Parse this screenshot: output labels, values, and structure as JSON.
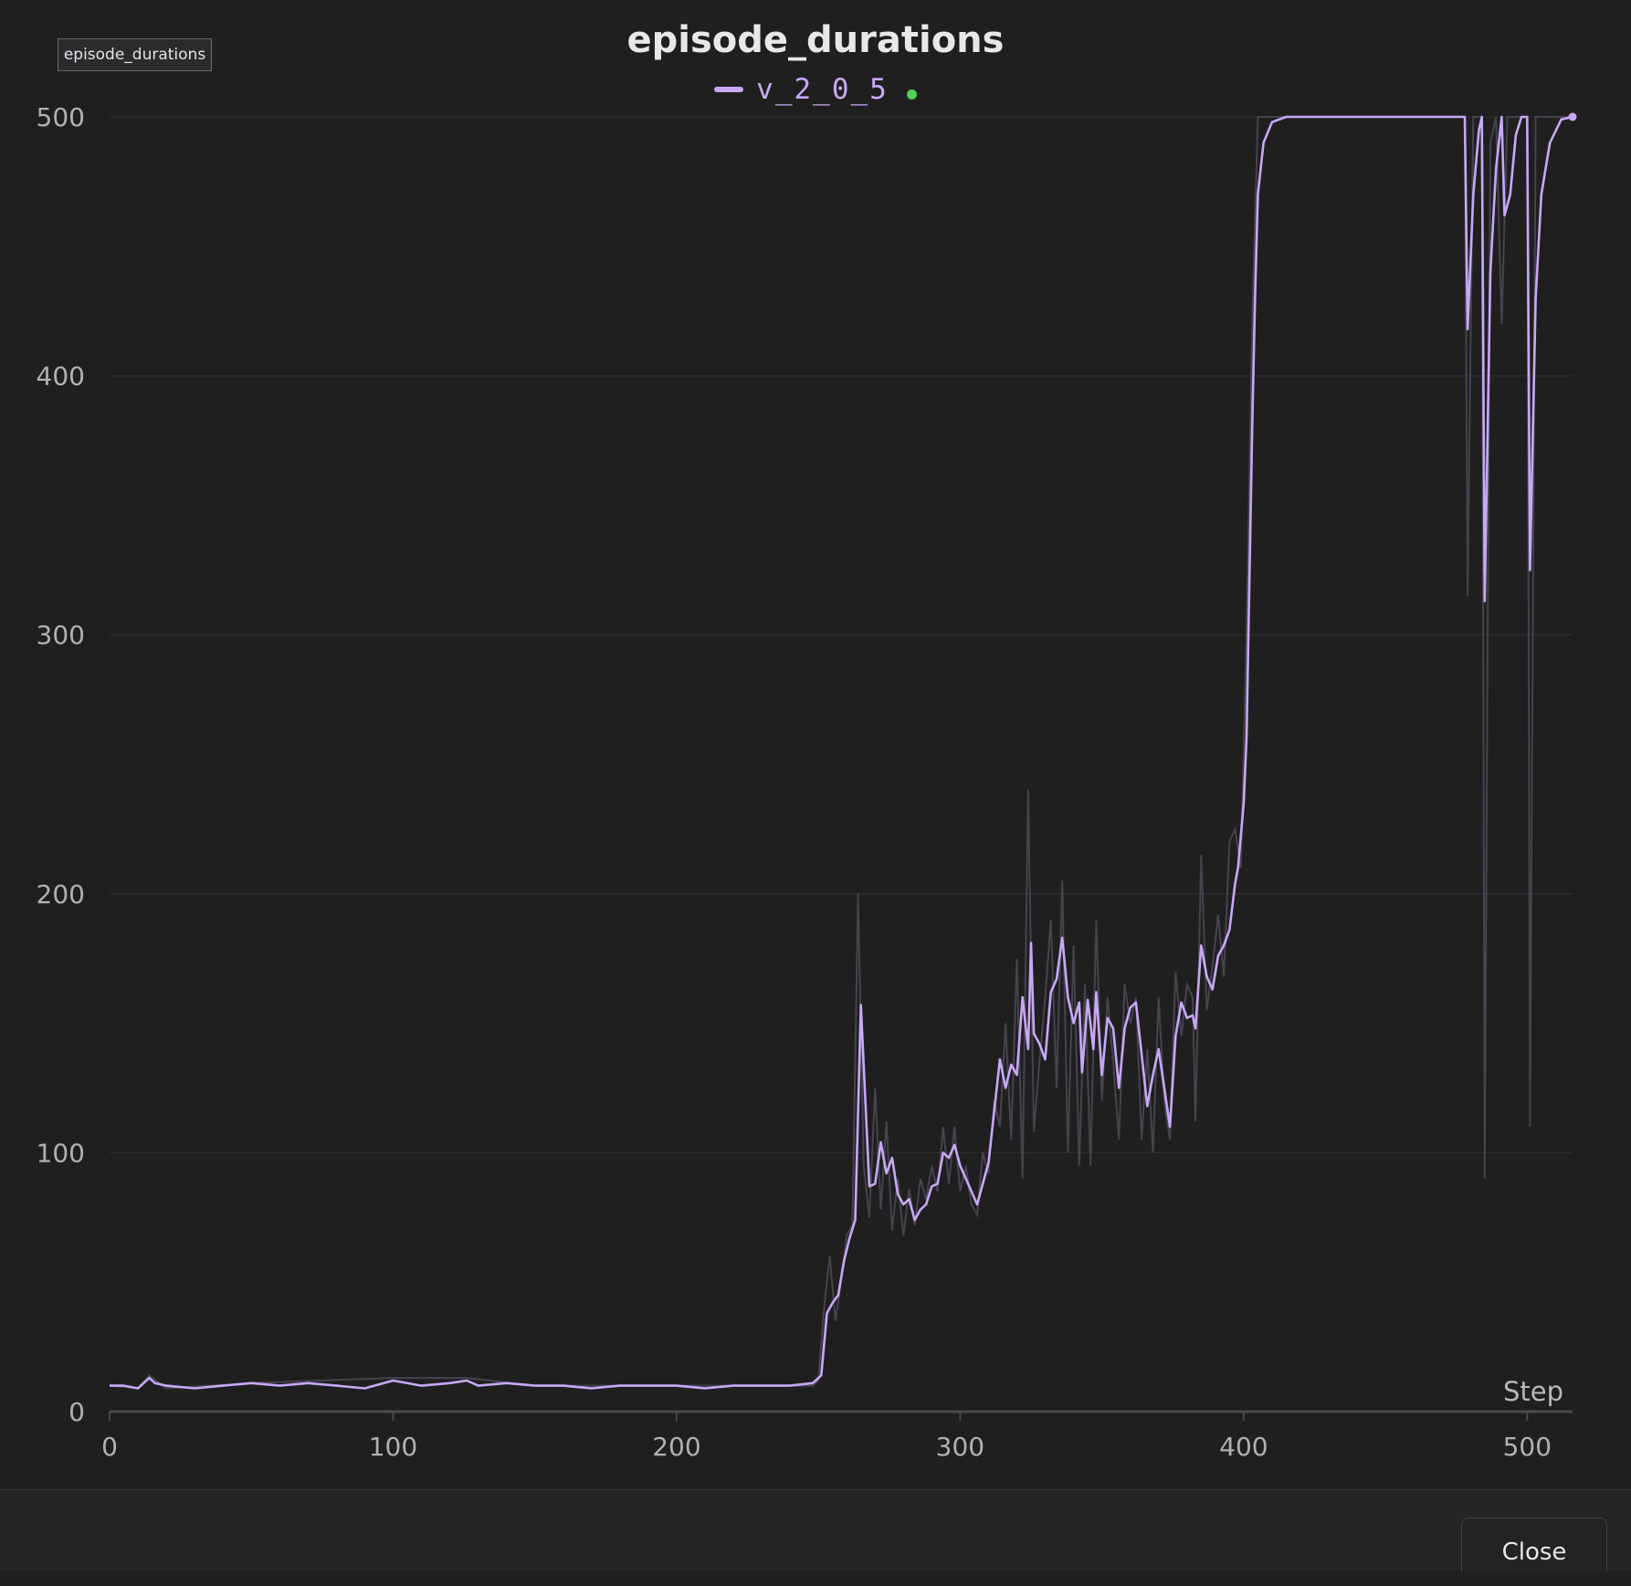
{
  "panel_tag": "episode_durations",
  "footer": {
    "close_label": "Close"
  },
  "colors": {
    "background": "#1f1f20",
    "series": "#c8a8f5",
    "raw_series": "#45434d",
    "gridline": "#2c2c2f",
    "live_indicator": "#4fd05a"
  },
  "chart_data": {
    "type": "line",
    "title": "episode_durations",
    "xlabel": "Step",
    "ylabel": "",
    "xlim": [
      0,
      516
    ],
    "ylim": [
      0,
      500
    ],
    "xticks": [
      0,
      100,
      200,
      300,
      400,
      500
    ],
    "yticks": [
      0,
      100,
      200,
      300,
      400,
      500
    ],
    "grid": true,
    "legend_position": "top-center",
    "series": [
      {
        "name": "v_2_0_5",
        "smoothed": true,
        "points": [
          [
            0,
            10
          ],
          [
            5,
            10
          ],
          [
            10,
            9
          ],
          [
            12,
            11
          ],
          [
            14,
            13
          ],
          [
            16,
            11
          ],
          [
            20,
            10
          ],
          [
            30,
            9
          ],
          [
            40,
            10
          ],
          [
            50,
            11
          ],
          [
            60,
            10
          ],
          [
            70,
            11
          ],
          [
            80,
            10
          ],
          [
            90,
            9
          ],
          [
            100,
            12
          ],
          [
            110,
            10
          ],
          [
            120,
            11
          ],
          [
            126,
            12
          ],
          [
            130,
            10
          ],
          [
            140,
            11
          ],
          [
            150,
            10
          ],
          [
            160,
            10
          ],
          [
            170,
            9
          ],
          [
            180,
            10
          ],
          [
            190,
            10
          ],
          [
            200,
            10
          ],
          [
            210,
            9
          ],
          [
            220,
            10
          ],
          [
            230,
            10
          ],
          [
            240,
            10
          ],
          [
            248,
            11
          ],
          [
            251,
            14
          ],
          [
            253,
            38
          ],
          [
            255,
            42
          ],
          [
            257,
            45
          ],
          [
            259,
            58
          ],
          [
            261,
            67
          ],
          [
            263,
            74
          ],
          [
            265,
            157
          ],
          [
            267,
            110
          ],
          [
            268,
            87
          ],
          [
            270,
            88
          ],
          [
            272,
            104
          ],
          [
            274,
            92
          ],
          [
            276,
            98
          ],
          [
            278,
            84
          ],
          [
            280,
            80
          ],
          [
            282,
            82
          ],
          [
            284,
            74
          ],
          [
            286,
            78
          ],
          [
            288,
            80
          ],
          [
            290,
            87
          ],
          [
            292,
            88
          ],
          [
            294,
            100
          ],
          [
            296,
            98
          ],
          [
            298,
            103
          ],
          [
            300,
            95
          ],
          [
            302,
            90
          ],
          [
            304,
            85
          ],
          [
            306,
            80
          ],
          [
            308,
            88
          ],
          [
            310,
            96
          ],
          [
            312,
            116
          ],
          [
            314,
            136
          ],
          [
            316,
            125
          ],
          [
            318,
            134
          ],
          [
            320,
            130
          ],
          [
            322,
            160
          ],
          [
            324,
            140
          ],
          [
            325,
            181
          ],
          [
            326,
            146
          ],
          [
            328,
            142
          ],
          [
            330,
            136
          ],
          [
            332,
            162
          ],
          [
            334,
            167
          ],
          [
            336,
            183
          ],
          [
            338,
            160
          ],
          [
            340,
            150
          ],
          [
            342,
            158
          ],
          [
            343,
            131
          ],
          [
            345,
            159
          ],
          [
            347,
            140
          ],
          [
            348,
            162
          ],
          [
            350,
            130
          ],
          [
            352,
            152
          ],
          [
            354,
            148
          ],
          [
            356,
            125
          ],
          [
            358,
            148
          ],
          [
            360,
            156
          ],
          [
            362,
            158
          ],
          [
            364,
            138
          ],
          [
            366,
            118
          ],
          [
            368,
            130
          ],
          [
            370,
            140
          ],
          [
            372,
            125
          ],
          [
            374,
            110
          ],
          [
            376,
            145
          ],
          [
            378,
            158
          ],
          [
            380,
            152
          ],
          [
            382,
            153
          ],
          [
            383,
            148
          ],
          [
            385,
            180
          ],
          [
            387,
            168
          ],
          [
            389,
            163
          ],
          [
            391,
            176
          ],
          [
            393,
            180
          ],
          [
            395,
            186
          ],
          [
            397,
            204
          ],
          [
            398,
            210
          ],
          [
            400,
            235
          ],
          [
            401,
            260
          ],
          [
            402,
            320
          ],
          [
            403,
            380
          ],
          [
            404,
            430
          ],
          [
            405,
            470
          ],
          [
            407,
            490
          ],
          [
            410,
            498
          ],
          [
            415,
            500
          ],
          [
            440,
            500
          ],
          [
            476,
            500
          ],
          [
            478,
            500
          ],
          [
            479,
            418
          ],
          [
            481,
            470
          ],
          [
            483,
            495
          ],
          [
            484,
            500
          ],
          [
            485,
            313
          ],
          [
            487,
            440
          ],
          [
            489,
            480
          ],
          [
            491,
            500
          ],
          [
            492,
            462
          ],
          [
            494,
            470
          ],
          [
            496,
            493
          ],
          [
            498,
            500
          ],
          [
            500,
            500
          ],
          [
            501,
            325
          ],
          [
            503,
            430
          ],
          [
            505,
            470
          ],
          [
            508,
            490
          ],
          [
            512,
            499
          ],
          [
            516,
            500
          ]
        ]
      }
    ],
    "raw_series_points": [
      [
        0,
        10
      ],
      [
        10,
        9
      ],
      [
        14,
        14
      ],
      [
        20,
        9
      ],
      [
        50,
        11
      ],
      [
        100,
        13
      ],
      [
        126,
        13
      ],
      [
        150,
        10
      ],
      [
        200,
        10
      ],
      [
        248,
        10
      ],
      [
        250,
        12
      ],
      [
        252,
        40
      ],
      [
        254,
        60
      ],
      [
        256,
        35
      ],
      [
        258,
        50
      ],
      [
        260,
        68
      ],
      [
        262,
        72
      ],
      [
        264,
        200
      ],
      [
        266,
        95
      ],
      [
        268,
        75
      ],
      [
        270,
        125
      ],
      [
        272,
        78
      ],
      [
        274,
        112
      ],
      [
        276,
        70
      ],
      [
        278,
        90
      ],
      [
        280,
        68
      ],
      [
        282,
        86
      ],
      [
        284,
        72
      ],
      [
        286,
        90
      ],
      [
        288,
        82
      ],
      [
        290,
        95
      ],
      [
        292,
        85
      ],
      [
        294,
        110
      ],
      [
        296,
        88
      ],
      [
        298,
        110
      ],
      [
        300,
        85
      ],
      [
        302,
        95
      ],
      [
        304,
        80
      ],
      [
        306,
        76
      ],
      [
        308,
        100
      ],
      [
        310,
        92
      ],
      [
        312,
        120
      ],
      [
        314,
        110
      ],
      [
        316,
        150
      ],
      [
        318,
        105
      ],
      [
        320,
        175
      ],
      [
        322,
        90
      ],
      [
        324,
        240
      ],
      [
        326,
        108
      ],
      [
        328,
        135
      ],
      [
        330,
        160
      ],
      [
        332,
        190
      ],
      [
        334,
        125
      ],
      [
        336,
        205
      ],
      [
        338,
        100
      ],
      [
        340,
        180
      ],
      [
        342,
        95
      ],
      [
        344,
        165
      ],
      [
        346,
        95
      ],
      [
        348,
        190
      ],
      [
        350,
        120
      ],
      [
        352,
        160
      ],
      [
        354,
        135
      ],
      [
        356,
        105
      ],
      [
        358,
        165
      ],
      [
        360,
        150
      ],
      [
        362,
        160
      ],
      [
        364,
        105
      ],
      [
        366,
        140
      ],
      [
        368,
        100
      ],
      [
        370,
        160
      ],
      [
        372,
        120
      ],
      [
        374,
        105
      ],
      [
        376,
        170
      ],
      [
        378,
        145
      ],
      [
        380,
        165
      ],
      [
        382,
        160
      ],
      [
        383,
        112
      ],
      [
        385,
        215
      ],
      [
        387,
        155
      ],
      [
        389,
        172
      ],
      [
        391,
        192
      ],
      [
        393,
        168
      ],
      [
        395,
        220
      ],
      [
        397,
        225
      ],
      [
        399,
        210
      ],
      [
        401,
        300
      ],
      [
        403,
        420
      ],
      [
        405,
        500
      ],
      [
        410,
        500
      ],
      [
        476,
        500
      ],
      [
        478,
        500
      ],
      [
        479,
        315
      ],
      [
        481,
        500
      ],
      [
        484,
        500
      ],
      [
        485,
        90
      ],
      [
        487,
        490
      ],
      [
        489,
        500
      ],
      [
        491,
        420
      ],
      [
        493,
        500
      ],
      [
        500,
        500
      ],
      [
        501,
        110
      ],
      [
        503,
        500
      ],
      [
        516,
        500
      ]
    ]
  }
}
